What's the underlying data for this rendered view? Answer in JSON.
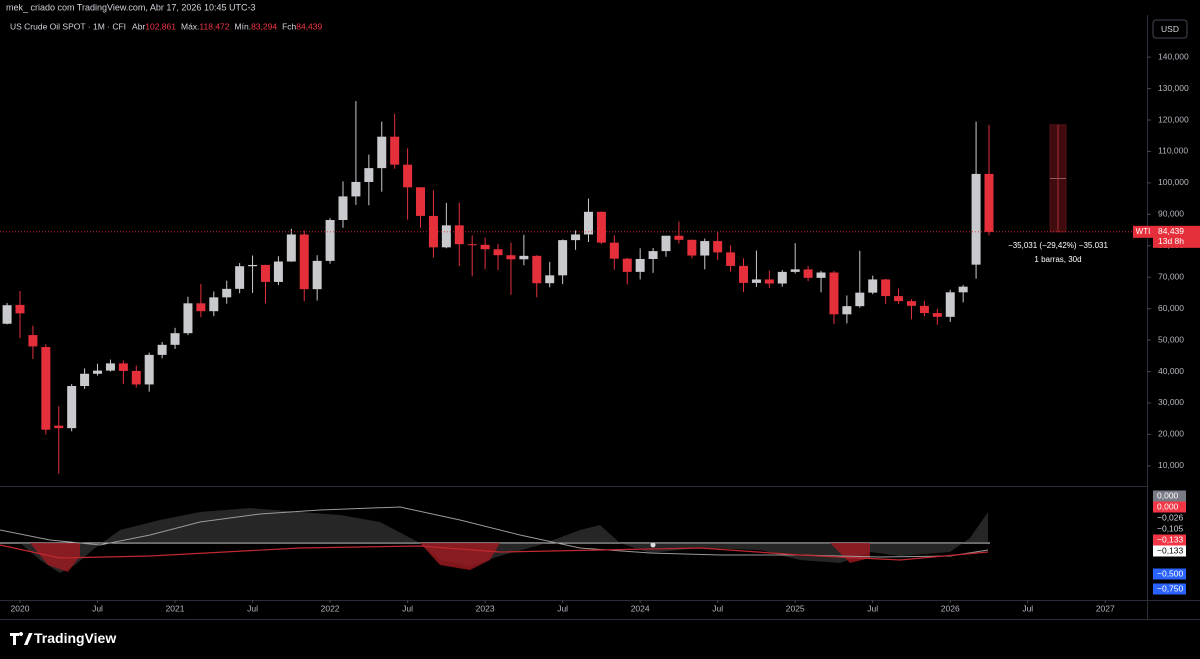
{
  "header": {
    "caption": "mek_ criado com TradingView.com, Abr 17, 2026 10:45 UTC-3",
    "symbol": "US Crude Oil SPOT · 1M · CFI",
    "ohlc": [
      {
        "label": "Abr",
        "value": "102,861"
      },
      {
        "label": "Máx.",
        "value": "118,472"
      },
      {
        "label": "Mín.",
        "value": "83,294"
      },
      {
        "label": "Fch",
        "value": "84,439"
      }
    ],
    "currency": "USD",
    "price_tag": {
      "name": "WTI",
      "value": "84,439",
      "countdown": "13d 8h"
    },
    "measure": {
      "line1": "−35,031 (−29,42%) −35.031",
      "line2": "1 barras, 30d"
    },
    "indicator_labels": [
      {
        "text": "0,000",
        "bg": "#787b86",
        "fg": "#ffffff"
      },
      {
        "text": "0,000",
        "bg": "#f23645",
        "fg": "#ffffff"
      },
      {
        "text": "−0,026",
        "bg": "#000000",
        "fg": "#d1d4dc"
      },
      {
        "text": "−0,105",
        "bg": "#000000",
        "fg": "#d1d4dc"
      },
      {
        "text": "−0,133",
        "bg": "#f23645",
        "fg": "#ffffff"
      },
      {
        "text": "−0,133",
        "bg": "#ffffff",
        "fg": "#000000"
      },
      {
        "text": "−0,500",
        "bg": "#2962ff",
        "fg": "#ffffff"
      },
      {
        "text": "−0,750",
        "bg": "#2962ff",
        "fg": "#ffffff"
      }
    ],
    "brand": "TradingView"
  },
  "chart_data": {
    "type": "candlestick",
    "up_color": "#c9cace",
    "down_color": "#e5303c",
    "x": [
      "2019-12",
      "2020-01",
      "2020-02",
      "2020-03",
      "2020-04",
      "2020-05",
      "2020-06",
      "2020-07",
      "2020-08",
      "2020-09",
      "2020-10",
      "2020-11",
      "2020-12",
      "2021-01",
      "2021-02",
      "2021-03",
      "2021-04",
      "2021-05",
      "2021-06",
      "2021-07",
      "2021-08",
      "2021-09",
      "2021-10",
      "2021-11",
      "2021-12",
      "2022-01",
      "2022-02",
      "2022-03",
      "2022-04",
      "2022-05",
      "2022-06",
      "2022-07",
      "2022-08",
      "2022-09",
      "2022-10",
      "2022-11",
      "2022-12",
      "2023-01",
      "2023-02",
      "2023-03",
      "2023-04",
      "2023-05",
      "2023-06",
      "2023-07",
      "2023-08",
      "2023-09",
      "2023-10",
      "2023-11",
      "2023-12",
      "2024-01",
      "2024-02",
      "2024-03",
      "2024-04",
      "2024-05",
      "2024-06",
      "2024-07",
      "2024-08",
      "2024-09",
      "2024-10",
      "2024-11",
      "2024-12",
      "2025-01",
      "2025-02",
      "2025-03",
      "2025-04",
      "2025-05",
      "2025-06",
      "2025-07",
      "2025-08",
      "2025-09",
      "2025-10",
      "2025-11",
      "2025-12",
      "2026-01",
      "2026-02",
      "2026-03",
      "2026-04"
    ],
    "open": [
      55.2,
      61.2,
      51.6,
      47.8,
      22.8,
      22,
      35.4,
      39.3,
      40.3,
      42.6,
      40.2,
      35.9,
      45.3,
      48.5,
      52.2,
      61.7,
      59.2,
      63.6,
      66.3,
      73.5,
      73.9,
      68.5,
      75,
      83.6,
      66.2,
      75.2,
      88.2,
      95.7,
      100.3,
      104.7,
      114.7,
      105.8,
      98.6,
      89.5,
      79.5,
      86.5,
      80.5,
      80.3,
      78.9,
      77,
      75.7,
      76.8,
      68.1,
      70.6,
      81.8,
      83.6,
      90.8,
      81,
      75.9,
      71.7,
      75.8,
      78.3,
      83.2,
      81.9,
      76.9,
      81.5,
      77.9,
      73.6,
      68.2,
      69.3,
      68,
      71.7,
      72.5,
      69.8,
      71.5,
      58.2,
      60.8,
      65.1,
      69.3,
      64,
      62.4,
      60.9,
      58.6,
      57.4,
      65.2,
      74,
      102.861
    ],
    "high": [
      61.8,
      65.6,
      54.6,
      48.7,
      29,
      36,
      41,
      42.5,
      43.8,
      43.5,
      41.9,
      46,
      49.4,
      53.9,
      63.8,
      67.9,
      65.5,
      68.9,
      74.5,
      76.9,
      74,
      76.7,
      85.4,
      84.9,
      77,
      88.8,
      100.5,
      126,
      109,
      119.5,
      122,
      111,
      98.6,
      97.7,
      93.6,
      93.7,
      83.3,
      82.6,
      80.6,
      81,
      83.5,
      77,
      74.9,
      82,
      84.9,
      95,
      90.9,
      83.3,
      76.2,
      79.2,
      79.3,
      83.1,
      87.7,
      82,
      82.3,
      84.5,
      80.2,
      76,
      78.5,
      72.1,
      72.3,
      80.8,
      73.6,
      72,
      72,
      64.2,
      78.4,
      70.5,
      69.5,
      66.4,
      63,
      62.5,
      60,
      66,
      67.5,
      119.5,
      118.472
    ],
    "low": [
      55,
      50.6,
      44,
      20,
      7.5,
      21,
      34.5,
      38.7,
      40,
      36,
      34.9,
      33.6,
      44.2,
      47.2,
      51.6,
      57.3,
      57.6,
      61.6,
      64.9,
      65,
      61.7,
      67.5,
      74.9,
      62.4,
      62.6,
      74.3,
      85.7,
      93,
      92.9,
      97.2,
      104.5,
      88.3,
      85.7,
      76.3,
      79.2,
      73.6,
      70.3,
      72.5,
      72.3,
      64.4,
      73.8,
      63.6,
      66.8,
      67.8,
      78.7,
      81.2,
      80.6,
      72.4,
      67.7,
      69.3,
      71.4,
      76.5,
      80.7,
      76,
      72.5,
      75.5,
      71.7,
      65.3,
      66.9,
      66.6,
      67,
      71.2,
      68.8,
      65.2,
      55.1,
      55.3,
      60.3,
      64.6,
      61.5,
      61.5,
      56.6,
      57.6,
      54.9,
      55.8,
      62,
      69.5,
      83.294
    ],
    "close": [
      61.1,
      58.5,
      48,
      21.5,
      22,
      35.4,
      39.3,
      40.3,
      42.6,
      40.2,
      35.9,
      45.3,
      48.5,
      52.2,
      61.7,
      59.2,
      63.6,
      66.3,
      73.5,
      73.9,
      68.5,
      75,
      83.6,
      66.2,
      75.2,
      88.2,
      95.7,
      100.3,
      104.7,
      114.7,
      105.8,
      98.6,
      89.5,
      79.5,
      86.5,
      80.5,
      80.3,
      78.9,
      77,
      75.7,
      76.8,
      68.1,
      70.6,
      81.8,
      83.6,
      90.8,
      81,
      75.9,
      71.7,
      75.8,
      78.3,
      83.2,
      81.9,
      76.9,
      81.5,
      77.9,
      73.6,
      68.2,
      69.3,
      68,
      71.7,
      72.5,
      69.8,
      71.5,
      58.2,
      60.8,
      65.1,
      69.3,
      64,
      62.4,
      60.9,
      58.6,
      57.4,
      65.2,
      67,
      102.861,
      84.439
    ],
    "ylim": [
      3.6,
      153.4
    ],
    "yticks": [
      {
        "value": 10,
        "label": "10,000"
      },
      {
        "value": 20,
        "label": "20,000"
      },
      {
        "value": 30,
        "label": "30,000"
      },
      {
        "value": 40,
        "label": "40,000"
      },
      {
        "value": 50,
        "label": "50,000"
      },
      {
        "value": 60,
        "label": "60,000"
      },
      {
        "value": 70,
        "label": "70,000"
      },
      {
        "value": 80,
        "label": "80,000"
      },
      {
        "value": 90,
        "label": "90,000"
      },
      {
        "value": 100,
        "label": "100,000"
      },
      {
        "value": 110,
        "label": "110,000"
      },
      {
        "value": 120,
        "label": "120,000"
      },
      {
        "value": 130,
        "label": "130,000"
      },
      {
        "value": 140,
        "label": "140,000"
      }
    ],
    "xticks": [
      {
        "value": "2020-01",
        "label": "2020"
      },
      {
        "value": "2020-07",
        "label": "Jul"
      },
      {
        "value": "2021-01",
        "label": "2021"
      },
      {
        "value": "2021-07",
        "label": "Jul"
      },
      {
        "value": "2022-01",
        "label": "2022"
      },
      {
        "value": "2022-07",
        "label": "Jul"
      },
      {
        "value": "2023-01",
        "label": "2023"
      },
      {
        "value": "2023-07",
        "label": "Jul"
      },
      {
        "value": "2024-01",
        "label": "2024"
      },
      {
        "value": "2024-07",
        "label": "Jul"
      },
      {
        "value": "2025-01",
        "label": "2025"
      },
      {
        "value": "2025-07",
        "label": "Jul"
      },
      {
        "value": "2026-01",
        "label": "2026"
      },
      {
        "value": "2026-07",
        "label": "Jul"
      },
      {
        "value": "2027-01",
        "label": "2027"
      }
    ]
  }
}
